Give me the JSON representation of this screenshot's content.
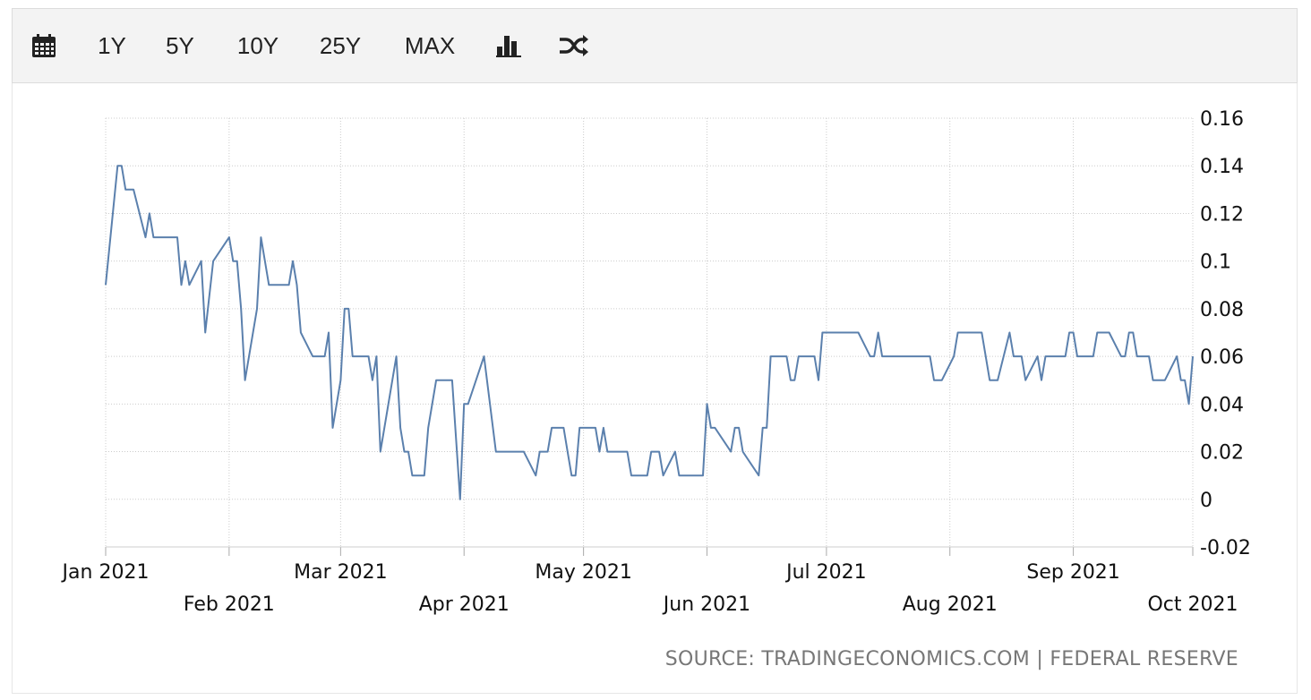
{
  "toolbar": {
    "calendar_icon": "calendar-icon",
    "ranges": [
      "1Y",
      "5Y",
      "10Y",
      "25Y",
      "MAX"
    ],
    "chart_type_icon": "bar-chart-icon",
    "compare_icon": "shuffle-icon"
  },
  "colors": {
    "line": "#5b80ad",
    "grid": "#cccccc",
    "axis_text": "#111111",
    "source_text": "#777777"
  },
  "source": "SOURCE: TRADINGECONOMICS.COM | FEDERAL RESERVE",
  "chart_data": {
    "type": "line",
    "title": "",
    "xlabel": "",
    "ylabel": "",
    "ylim": [
      -0.02,
      0.16
    ],
    "yticks": [
      "0.16",
      "0.14",
      "0.12",
      "0.1",
      "0.08",
      "0.06",
      "0.04",
      "0.02",
      "0",
      "-0.02"
    ],
    "ytick_values": [
      0.16,
      0.14,
      0.12,
      0.1,
      0.08,
      0.06,
      0.04,
      0.02,
      0,
      -0.02
    ],
    "xticks": [
      {
        "label": "Jan 2021",
        "date": "2021-01-01",
        "row": 1
      },
      {
        "label": "Feb 2021",
        "date": "2021-02-01",
        "row": 2
      },
      {
        "label": "Mar 2021",
        "date": "2021-03-01",
        "row": 1
      },
      {
        "label": "Apr 2021",
        "date": "2021-04-01",
        "row": 2
      },
      {
        "label": "May 2021",
        "date": "2021-05-01",
        "row": 1
      },
      {
        "label": "Jun 2021",
        "date": "2021-06-01",
        "row": 2
      },
      {
        "label": "Jul 2021",
        "date": "2021-07-01",
        "row": 1
      },
      {
        "label": "Aug 2021",
        "date": "2021-08-01",
        "row": 2
      },
      {
        "label": "Sep 2021",
        "date": "2021-09-01",
        "row": 1
      },
      {
        "label": "Oct 2021",
        "date": "2021-10-01",
        "row": 2
      }
    ],
    "xlim": [
      "2021-01-01",
      "2021-10-01"
    ],
    "grid": true,
    "series": [
      {
        "points": [
          [
            "2021-01-01",
            0.09
          ],
          [
            "2021-01-04",
            0.14
          ],
          [
            "2021-01-05",
            0.14
          ],
          [
            "2021-01-06",
            0.13
          ],
          [
            "2021-01-07",
            0.13
          ],
          [
            "2021-01-08",
            0.13
          ],
          [
            "2021-01-11",
            0.11
          ],
          [
            "2021-01-12",
            0.12
          ],
          [
            "2021-01-13",
            0.11
          ],
          [
            "2021-01-14",
            0.11
          ],
          [
            "2021-01-15",
            0.11
          ],
          [
            "2021-01-19",
            0.11
          ],
          [
            "2021-01-20",
            0.09
          ],
          [
            "2021-01-21",
            0.1
          ],
          [
            "2021-01-22",
            0.09
          ],
          [
            "2021-01-25",
            0.1
          ],
          [
            "2021-01-26",
            0.07
          ],
          [
            "2021-01-28",
            0.1
          ],
          [
            "2021-02-01",
            0.11
          ],
          [
            "2021-02-02",
            0.1
          ],
          [
            "2021-02-03",
            0.1
          ],
          [
            "2021-02-04",
            0.08
          ],
          [
            "2021-02-05",
            0.05
          ],
          [
            "2021-02-08",
            0.08
          ],
          [
            "2021-02-09",
            0.11
          ],
          [
            "2021-02-11",
            0.09
          ],
          [
            "2021-02-12",
            0.09
          ],
          [
            "2021-02-16",
            0.09
          ],
          [
            "2021-02-17",
            0.1
          ],
          [
            "2021-02-18",
            0.09
          ],
          [
            "2021-02-19",
            0.07
          ],
          [
            "2021-02-22",
            0.06
          ],
          [
            "2021-02-23",
            0.06
          ],
          [
            "2021-02-24",
            0.06
          ],
          [
            "2021-02-25",
            0.06
          ],
          [
            "2021-02-26",
            0.07
          ],
          [
            "2021-02-27",
            0.03
          ],
          [
            "2021-03-01",
            0.05
          ],
          [
            "2021-03-02",
            0.08
          ],
          [
            "2021-03-03",
            0.08
          ],
          [
            "2021-03-04",
            0.06
          ],
          [
            "2021-03-05",
            0.06
          ],
          [
            "2021-03-08",
            0.06
          ],
          [
            "2021-03-09",
            0.05
          ],
          [
            "2021-03-10",
            0.06
          ],
          [
            "2021-03-11",
            0.02
          ],
          [
            "2021-03-15",
            0.06
          ],
          [
            "2021-03-16",
            0.03
          ],
          [
            "2021-03-17",
            0.02
          ],
          [
            "2021-03-18",
            0.02
          ],
          [
            "2021-03-19",
            0.01
          ],
          [
            "2021-03-22",
            0.01
          ],
          [
            "2021-03-23",
            0.03
          ],
          [
            "2021-03-25",
            0.05
          ],
          [
            "2021-03-29",
            0.05
          ],
          [
            "2021-03-31",
            0.0
          ],
          [
            "2021-04-01",
            0.04
          ],
          [
            "2021-04-02",
            0.04
          ],
          [
            "2021-04-06",
            0.06
          ],
          [
            "2021-04-09",
            0.02
          ],
          [
            "2021-04-16",
            0.02
          ],
          [
            "2021-04-19",
            0.01
          ],
          [
            "2021-04-20",
            0.02
          ],
          [
            "2021-04-22",
            0.02
          ],
          [
            "2021-04-23",
            0.03
          ],
          [
            "2021-04-26",
            0.03
          ],
          [
            "2021-04-27",
            0.02
          ],
          [
            "2021-04-28",
            0.01
          ],
          [
            "2021-04-29",
            0.01
          ],
          [
            "2021-04-30",
            0.03
          ],
          [
            "2021-05-03",
            0.03
          ],
          [
            "2021-05-04",
            0.03
          ],
          [
            "2021-05-05",
            0.02
          ],
          [
            "2021-05-06",
            0.03
          ],
          [
            "2021-05-07",
            0.02
          ],
          [
            "2021-05-11",
            0.02
          ],
          [
            "2021-05-12",
            0.02
          ],
          [
            "2021-05-13",
            0.01
          ],
          [
            "2021-05-17",
            0.01
          ],
          [
            "2021-05-18",
            0.02
          ],
          [
            "2021-05-20",
            0.02
          ],
          [
            "2021-05-21",
            0.01
          ],
          [
            "2021-05-24",
            0.02
          ],
          [
            "2021-05-25",
            0.01
          ],
          [
            "2021-05-27",
            0.01
          ],
          [
            "2021-05-31",
            0.01
          ],
          [
            "2021-06-01",
            0.04
          ],
          [
            "2021-06-02",
            0.03
          ],
          [
            "2021-06-03",
            0.03
          ],
          [
            "2021-06-07",
            0.02
          ],
          [
            "2021-06-08",
            0.03
          ],
          [
            "2021-06-09",
            0.03
          ],
          [
            "2021-06-10",
            0.02
          ],
          [
            "2021-06-14",
            0.01
          ],
          [
            "2021-06-15",
            0.03
          ],
          [
            "2021-06-16",
            0.03
          ],
          [
            "2021-06-17",
            0.06
          ],
          [
            "2021-06-18",
            0.06
          ],
          [
            "2021-06-21",
            0.06
          ],
          [
            "2021-06-22",
            0.05
          ],
          [
            "2021-06-23",
            0.05
          ],
          [
            "2021-06-24",
            0.06
          ],
          [
            "2021-06-25",
            0.06
          ],
          [
            "2021-06-28",
            0.06
          ],
          [
            "2021-06-29",
            0.05
          ],
          [
            "2021-06-30",
            0.07
          ],
          [
            "2021-07-01",
            0.07
          ],
          [
            "2021-07-02",
            0.07
          ],
          [
            "2021-07-09",
            0.07
          ],
          [
            "2021-07-12",
            0.06
          ],
          [
            "2021-07-13",
            0.06
          ],
          [
            "2021-07-14",
            0.07
          ],
          [
            "2021-07-15",
            0.06
          ],
          [
            "2021-07-16",
            0.06
          ],
          [
            "2021-07-27",
            0.06
          ],
          [
            "2021-07-28",
            0.05
          ],
          [
            "2021-07-30",
            0.05
          ],
          [
            "2021-08-02",
            0.06
          ],
          [
            "2021-08-03",
            0.07
          ],
          [
            "2021-08-04",
            0.07
          ],
          [
            "2021-08-09",
            0.07
          ],
          [
            "2021-08-11",
            0.05
          ],
          [
            "2021-08-13",
            0.05
          ],
          [
            "2021-08-16",
            0.07
          ],
          [
            "2021-08-17",
            0.06
          ],
          [
            "2021-08-19",
            0.06
          ],
          [
            "2021-08-20",
            0.05
          ],
          [
            "2021-08-23",
            0.06
          ],
          [
            "2021-08-24",
            0.05
          ],
          [
            "2021-08-25",
            0.06
          ],
          [
            "2021-08-26",
            0.06
          ],
          [
            "2021-08-30",
            0.06
          ],
          [
            "2021-08-31",
            0.07
          ],
          [
            "2021-09-01",
            0.07
          ],
          [
            "2021-09-02",
            0.06
          ],
          [
            "2021-09-03",
            0.06
          ],
          [
            "2021-09-06",
            0.06
          ],
          [
            "2021-09-07",
            0.07
          ],
          [
            "2021-09-10",
            0.07
          ],
          [
            "2021-09-13",
            0.06
          ],
          [
            "2021-09-14",
            0.06
          ],
          [
            "2021-09-15",
            0.07
          ],
          [
            "2021-09-16",
            0.07
          ],
          [
            "2021-09-17",
            0.06
          ],
          [
            "2021-09-20",
            0.06
          ],
          [
            "2021-09-21",
            0.05
          ],
          [
            "2021-09-22",
            0.05
          ],
          [
            "2021-09-23",
            0.05
          ],
          [
            "2021-09-24",
            0.05
          ],
          [
            "2021-09-27",
            0.06
          ],
          [
            "2021-09-28",
            0.05
          ],
          [
            "2021-09-29",
            0.05
          ],
          [
            "2021-09-30",
            0.04
          ],
          [
            "2021-10-01",
            0.06
          ]
        ]
      }
    ]
  }
}
